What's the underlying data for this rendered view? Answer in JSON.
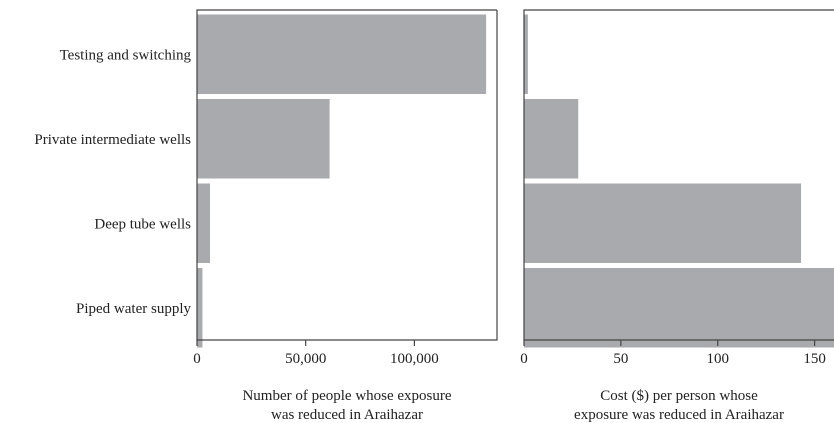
{
  "chart_data": [
    {
      "type": "bar",
      "orientation": "horizontal",
      "categories": [
        "Testing and switching",
        "Private intermediate wells",
        "Deep tube wells",
        "Piped water supply"
      ],
      "values": [
        133000,
        61000,
        6000,
        2500
      ],
      "xlim": [
        0,
        138000
      ],
      "xticks": [
        0,
        50000,
        100000
      ],
      "xtick_labels": [
        "0",
        "50,000",
        "100,000"
      ],
      "xlabel": [
        "Number of people whose exposure",
        "was reduced in Araihazar"
      ],
      "bar_color": "#a9aaad",
      "grid": false
    },
    {
      "type": "bar",
      "orientation": "horizontal",
      "categories": [
        "Testing and switching",
        "Private intermediate wells",
        "Deep tube wells",
        "Piped water supply"
      ],
      "values": [
        2,
        28,
        143,
        160
      ],
      "xlim": [
        0,
        160
      ],
      "xticks": [
        0,
        50,
        100,
        150
      ],
      "xtick_labels": [
        "0",
        "50",
        "100",
        "150"
      ],
      "xlabel": [
        "Cost ($) per person whose",
        "exposure was reduced in Araihazar"
      ],
      "bar_color": "#a9aaad",
      "grid": false
    }
  ]
}
